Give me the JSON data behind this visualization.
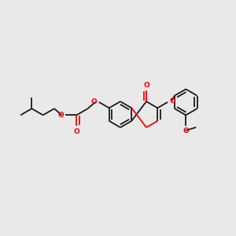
{
  "background_color": "#e9e9e9",
  "bond_color": "#1a1a1a",
  "oxygen_color": "#ff0000",
  "lw": 1.3,
  "dpi": 100,
  "fig_w": 3.0,
  "fig_h": 3.0,
  "bl": 0.055,
  "xlim": [
    0.0,
    1.0
  ],
  "ylim": [
    0.25,
    0.75
  ]
}
